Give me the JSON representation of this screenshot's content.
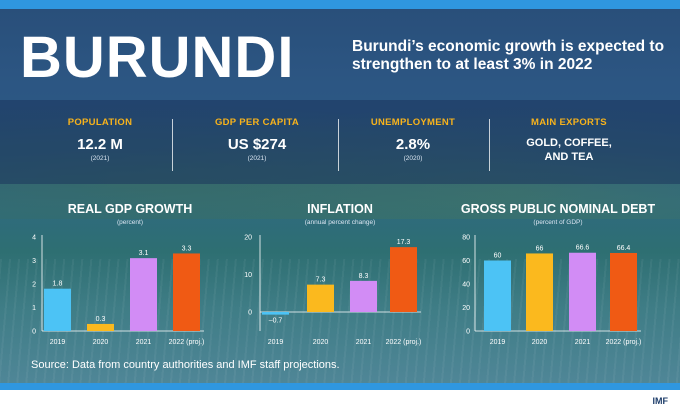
{
  "title": "BURUNDI",
  "subtitle": "Burundi’s economic growth is expected to strengthen to at least 3% in 2022",
  "stats": [
    {
      "label": "POPULATION",
      "value": "12.2 M",
      "note": "(2021)"
    },
    {
      "label": "GDP PER CAPITA",
      "value": "US $274",
      "note": "(2021)"
    },
    {
      "label": "UNEMPLOYMENT",
      "value": "2.8%",
      "note": "(2020)"
    },
    {
      "label": "MAIN EXPORTS",
      "value": "GOLD, COFFEE, AND TEA",
      "note": ""
    }
  ],
  "colors": {
    "bar_2019": "#4cc3f5",
    "bar_2020": "#fbb91e",
    "bar_2021": "#d28cf5",
    "bar_2022": "#f05a14",
    "label_accent": "#f7b31c",
    "strip": "#2f97e0"
  },
  "chart_data": [
    {
      "type": "bar",
      "title": "REAL GDP GROWTH",
      "ylabel": "(percent)",
      "categories": [
        "2019",
        "2020",
        "2021",
        "2022 (proj.)"
      ],
      "values": [
        1.8,
        0.3,
        3.1,
        3.3
      ],
      "value_labels": [
        "1.8",
        "0.3",
        "3.1",
        "3.3"
      ],
      "yticks": [
        "0",
        "1",
        "2",
        "3",
        "4"
      ],
      "ylim": [
        0,
        4
      ],
      "grid": false
    },
    {
      "type": "bar",
      "title": "INFLATION",
      "ylabel": "(annual percent change)",
      "categories": [
        "2019",
        "2020",
        "2021",
        "2022 (proj.)"
      ],
      "values": [
        -0.7,
        7.3,
        8.3,
        17.3
      ],
      "value_labels": [
        "–0.7",
        "7.3",
        "8.3",
        "17.3"
      ],
      "yticks": [
        "0",
        "10",
        "20"
      ],
      "ylim": [
        -3,
        20
      ],
      "grid": false
    },
    {
      "type": "bar",
      "title": "GROSS PUBLIC NOMINAL DEBT",
      "ylabel": "(percent of GDP)",
      "categories": [
        "2019",
        "2020",
        "2021",
        "2022 (proj.)"
      ],
      "values": [
        60,
        66,
        66.6,
        66.4
      ],
      "value_labels": [
        "60",
        "66",
        "66.6",
        "66.4"
      ],
      "yticks": [
        "0",
        "20",
        "40",
        "60",
        "80"
      ],
      "ylim": [
        0,
        80
      ],
      "grid": false
    }
  ],
  "source": "Source: Data from country authorities and IMF staff projections.",
  "footer_logo": "IMF"
}
